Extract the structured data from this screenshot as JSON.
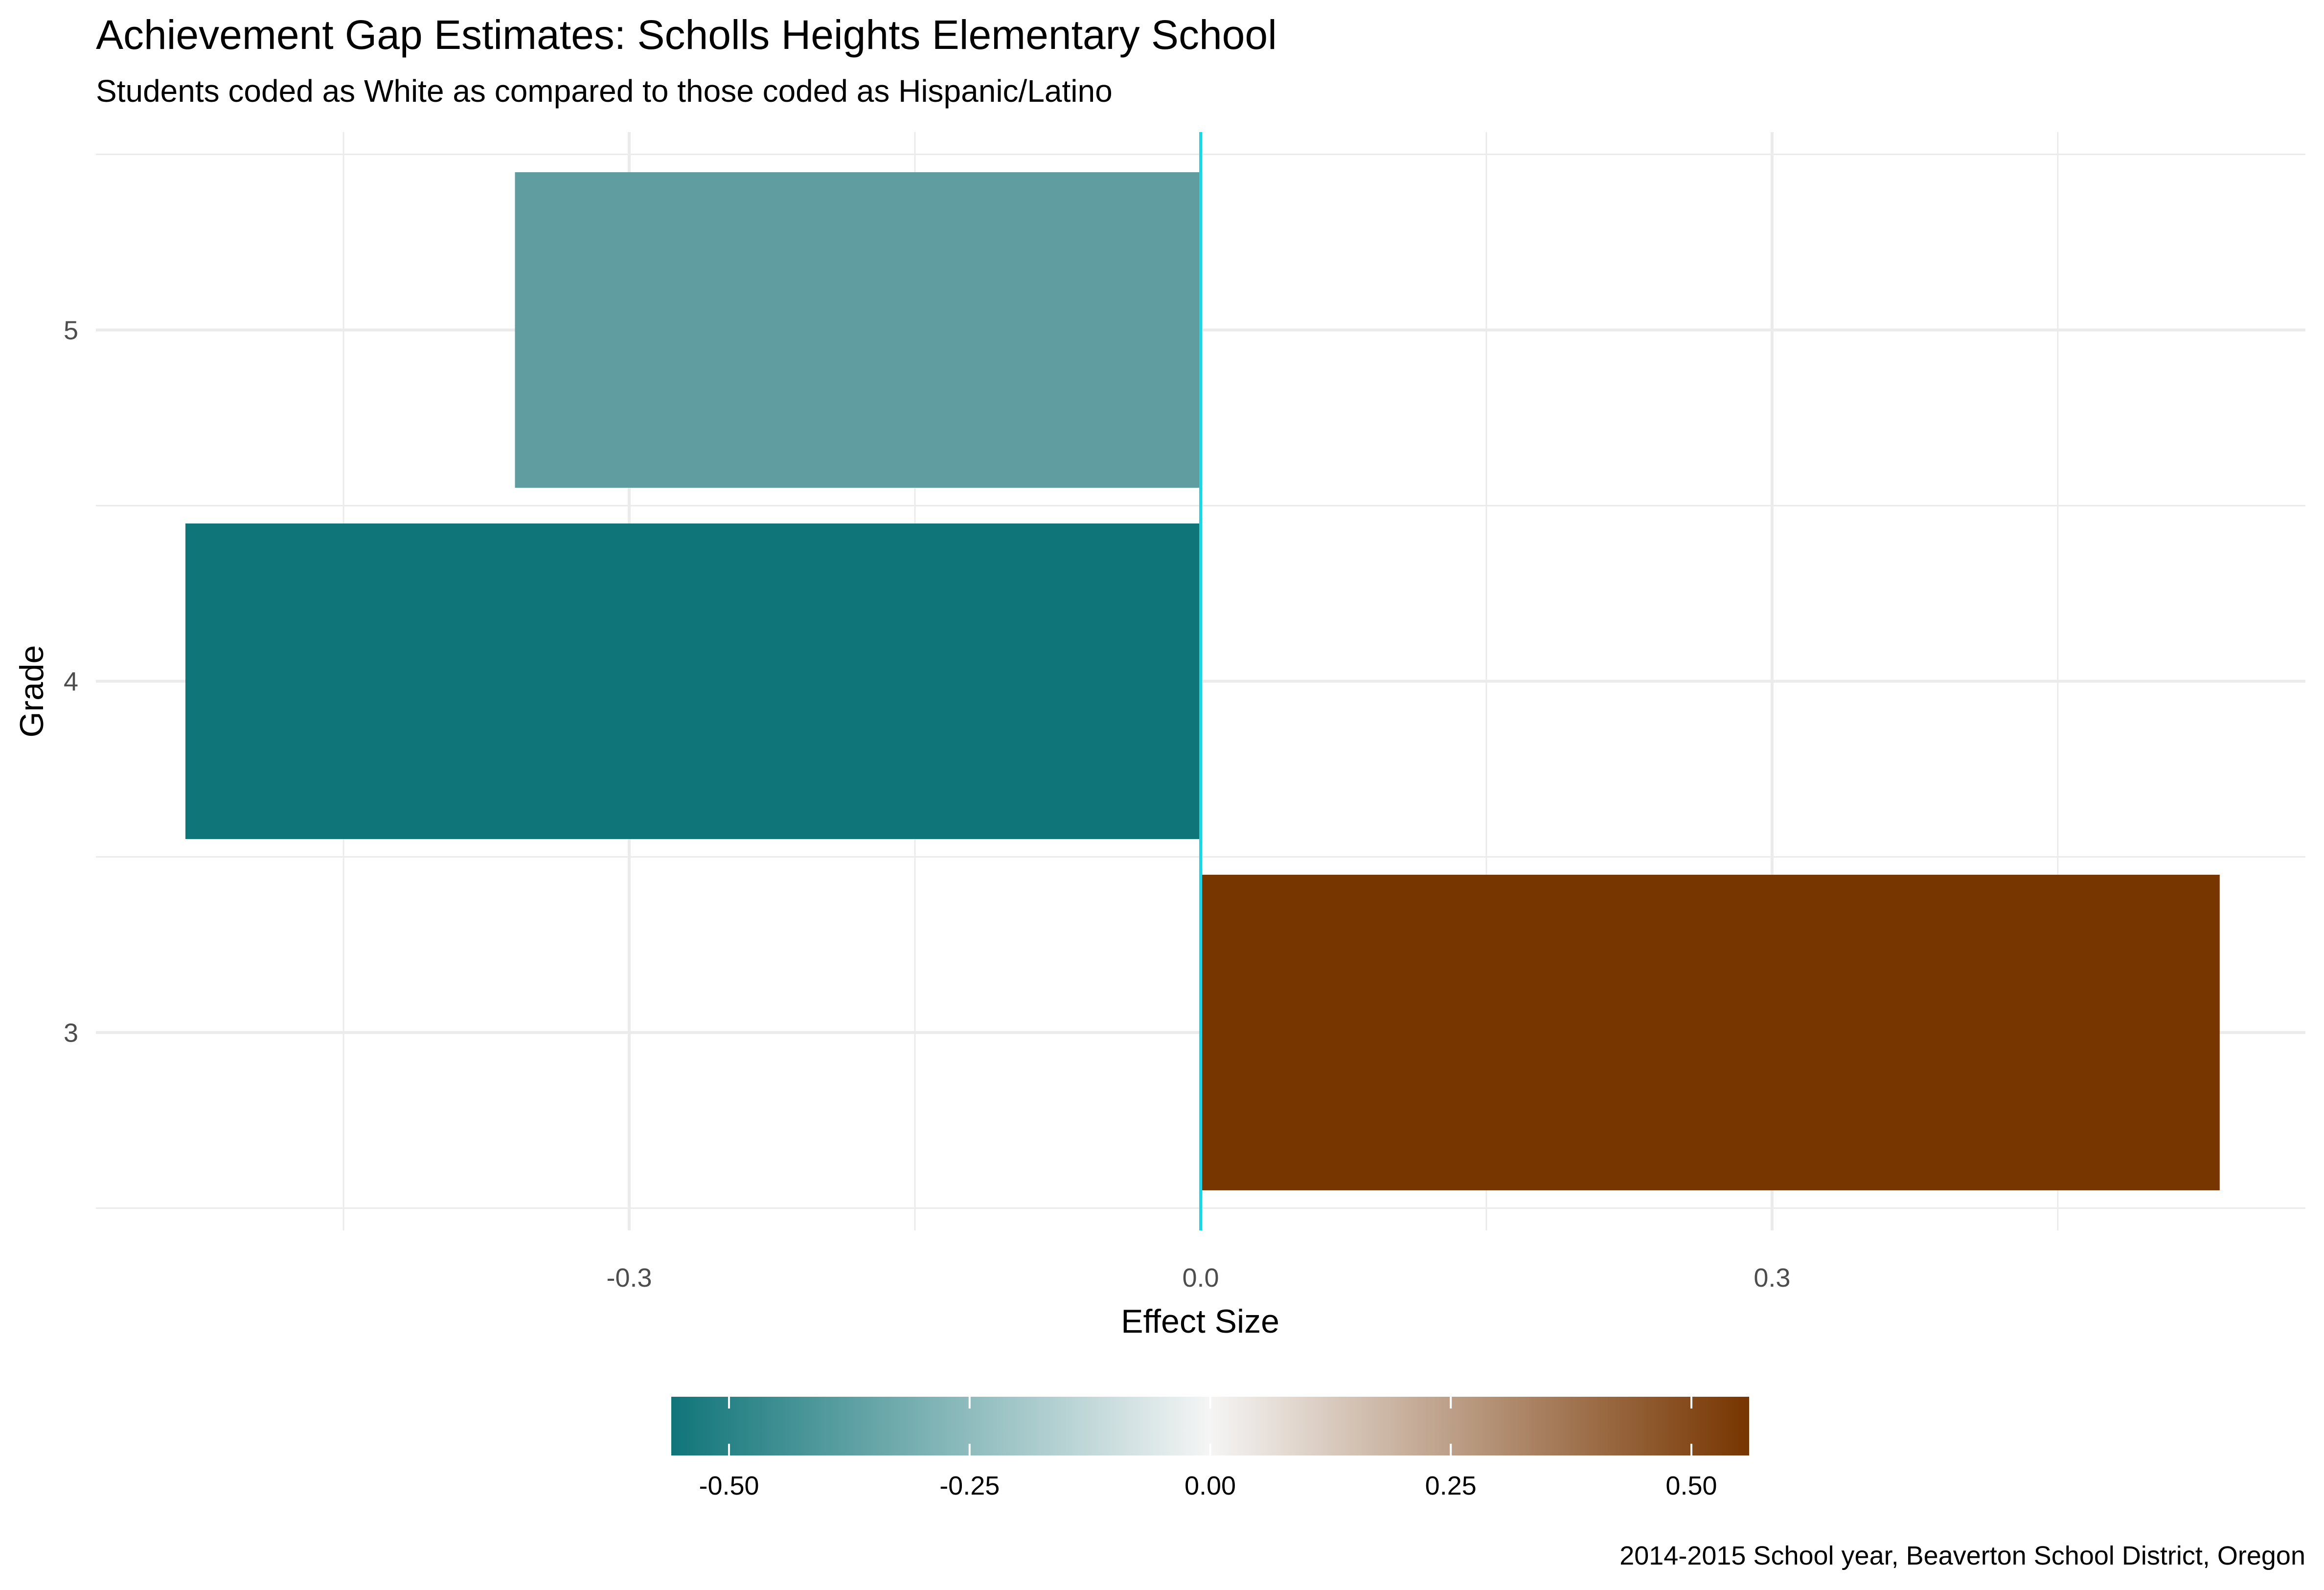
{
  "chart_data": {
    "type": "bar",
    "orientation": "horizontal",
    "title": "Achievement Gap Estimates: Scholls Heights Elementary School",
    "subtitle": "Students coded as White as compared to those coded as Hispanic/Latino",
    "xlabel": "Effect Size",
    "ylabel": "Grade",
    "caption": "2014-2015 School year, Beaverton School District, Oregon",
    "categories": [
      "3",
      "4",
      "5"
    ],
    "values": [
      0.535,
      -0.533,
      -0.36
    ],
    "bar_colors": [
      "#773500",
      "#107579",
      "#5f9da0"
    ],
    "xlim": [
      -0.58,
      0.58
    ],
    "x_ticks": [
      -0.3,
      0.0,
      0.3
    ],
    "x_tick_labels": [
      "-0.3",
      "0.0",
      "0.3"
    ],
    "zero_line_color": "#1ed5e6",
    "grid": true,
    "legend": {
      "type": "colorbar",
      "placement": "bottom",
      "range": [
        -0.56,
        0.56
      ],
      "ticks": [
        -0.5,
        -0.25,
        0.0,
        0.25,
        0.5
      ],
      "tick_labels": [
        "-0.50",
        "-0.25",
        "0.00",
        "0.25",
        "0.50"
      ],
      "low_color": "#107579",
      "mid_color": "#f5f5f5",
      "high_color": "#773500"
    }
  }
}
